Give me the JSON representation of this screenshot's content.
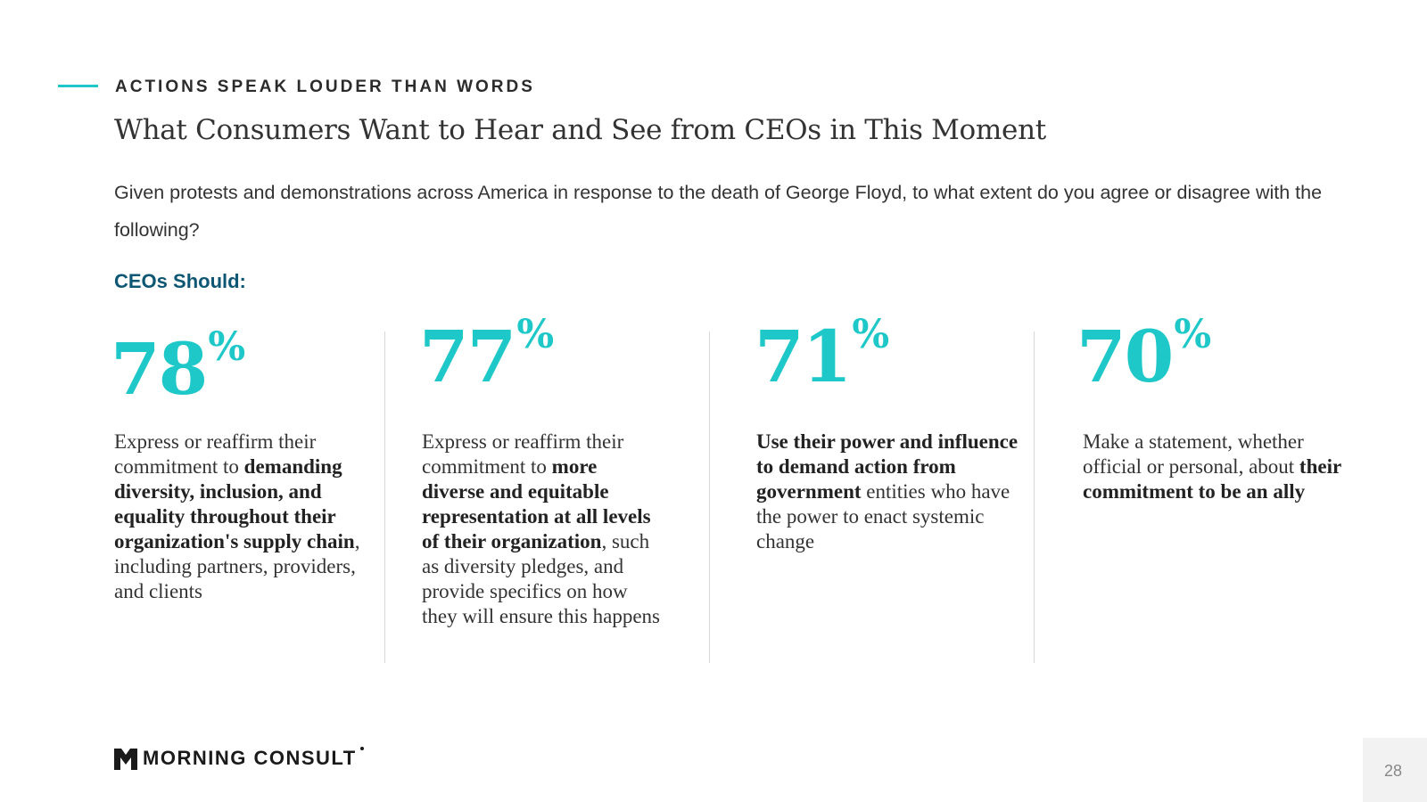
{
  "header": {
    "eyebrow": "ACTIONS SPEAK LOUDER THAN WORDS",
    "title": "What Consumers Want to Hear and See from CEOs in This Moment",
    "question": "Given protests and demonstrations across America in response to the death of George Floyd, to what extent do you agree or disagree with the following?",
    "subhead": "CEOs Should:"
  },
  "colors": {
    "accent": "#1fc8c8",
    "subhead": "#0e5774",
    "text": "#333333"
  },
  "stats": [
    {
      "value": "78",
      "unit": "%",
      "parts": [
        {
          "text": "Express or reaffirm their commitment to ",
          "bold": false
        },
        {
          "text": "demanding diversity, inclusion, and equality throughout their organization's supply chain",
          "bold": true
        },
        {
          "text": ", including partners, providers, and clients",
          "bold": false
        }
      ]
    },
    {
      "value": "77",
      "unit": "%",
      "parts": [
        {
          "text": "Express or reaffirm their commitment to ",
          "bold": false
        },
        {
          "text": "more diverse and equitable representation at all levels of their organization",
          "bold": true
        },
        {
          "text": ", such as diversity pledges, and provide specifics on how they will ensure this happens",
          "bold": false
        }
      ]
    },
    {
      "value": "71",
      "unit": "%",
      "parts": [
        {
          "text": "Use their power and influence to demand action from government",
          "bold": true
        },
        {
          "text": " entities who have the power to enact systemic change",
          "bold": false
        }
      ]
    },
    {
      "value": "70",
      "unit": "%",
      "parts": [
        {
          "text": "Make a statement, whether official or personal, about ",
          "bold": false
        },
        {
          "text": "their commitment to be an ally",
          "bold": true
        }
      ]
    }
  ],
  "footer": {
    "logo_text": "MORNING CONSULT",
    "logo_icon": "morning-consult-m-icon",
    "page_number": "28"
  }
}
